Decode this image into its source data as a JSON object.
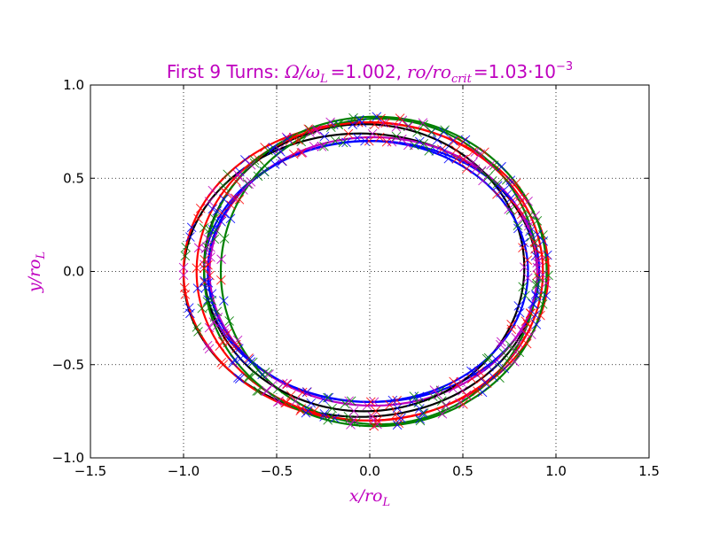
{
  "chart_data": {
    "type": "line",
    "title": {
      "prefix": "First 9 Turns: ",
      "omega": "Ω",
      "omega_sub": "L",
      "ratio_eq": "=1.002,",
      "ro_label": "ro/ro",
      "ro_sub": "crit",
      "ro_eq": "=1.03·10",
      "ro_exp": "−3",
      "color": "#bf00bf"
    },
    "xlabel": {
      "text": "x/ro",
      "sub": "L",
      "color": "#bf00bf"
    },
    "ylabel": {
      "text": "y/ro",
      "sub": "L",
      "color": "#bf00bf"
    },
    "xlim": [
      -1.5,
      1.5
    ],
    "ylim": [
      -1.0,
      1.0
    ],
    "xticks": [
      -1.5,
      -1.0,
      -0.5,
      0.0,
      0.5,
      1.0,
      1.5
    ],
    "yticks": [
      -1.0,
      -0.5,
      0.0,
      0.5,
      1.0
    ],
    "xtick_labels": [
      "−1.5",
      "−1.0",
      "−0.5",
      "0.0",
      "0.5",
      "1.0",
      "1.5"
    ],
    "ytick_labels": [
      "−1.0",
      "−0.5",
      "0.0",
      "0.5",
      "1.0"
    ],
    "grid": true,
    "grid_style": "dotted",
    "marker_color_sequence": [
      "#ff0000",
      "#0000ff",
      "#008000",
      "#bf00bf"
    ],
    "series": [
      {
        "color": "#000000",
        "cx": -0.05,
        "cy": -0.02,
        "rx": 0.95,
        "ry": 0.76
      },
      {
        "color": "#ff0000",
        "cx": -0.02,
        "cy": 0.0,
        "rx": 0.98,
        "ry": 0.8
      },
      {
        "color": "#0000ff",
        "cx": 0.01,
        "cy": 0.0,
        "rx": 0.9,
        "ry": 0.7
      },
      {
        "color": "#008000",
        "cx": 0.05,
        "cy": 0.0,
        "rx": 0.85,
        "ry": 0.82
      },
      {
        "color": "#bf00bf",
        "cx": 0.02,
        "cy": 0.0,
        "rx": 0.88,
        "ry": 0.72
      },
      {
        "color": "#000000",
        "cx": -0.03,
        "cy": 0.02,
        "rx": 0.86,
        "ry": 0.77
      },
      {
        "color": "#ff0000",
        "cx": 0.0,
        "cy": 0.0,
        "rx": 0.93,
        "ry": 0.8
      },
      {
        "color": "#0000ff",
        "cx": -0.01,
        "cy": 0.0,
        "rx": 0.86,
        "ry": 0.7
      },
      {
        "color": "#008000",
        "cx": 0.03,
        "cy": 0.0,
        "rx": 0.92,
        "ry": 0.83
      }
    ]
  }
}
